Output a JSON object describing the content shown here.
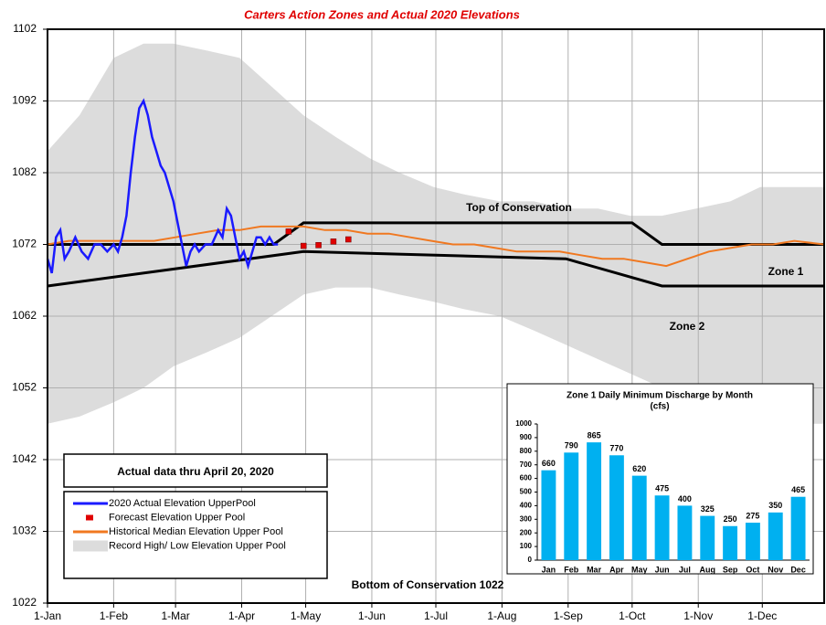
{
  "chart_data": [
    {
      "type": "line",
      "title": "Carters Action Zones and Actual 2020 Elevations",
      "xlim": [
        0,
        364
      ],
      "xticks": [
        {
          "value": 0,
          "label": "1-Jan"
        },
        {
          "value": 31,
          "label": "1-Feb"
        },
        {
          "value": 60,
          "label": "1-Mar"
        },
        {
          "value": 91,
          "label": "1-Apr"
        },
        {
          "value": 121,
          "label": "1-May"
        },
        {
          "value": 152,
          "label": "1-Jun"
        },
        {
          "value": 182,
          "label": "1-Jul"
        },
        {
          "value": 213,
          "label": "1-Aug"
        },
        {
          "value": 244,
          "label": "1-Sep"
        },
        {
          "value": 274,
          "label": "1-Oct"
        },
        {
          "value": 305,
          "label": "1-Nov"
        },
        {
          "value": 335,
          "label": "1-Dec"
        }
      ],
      "ylim": [
        1022,
        1102
      ],
      "yticks": [
        1022,
        1032,
        1042,
        1052,
        1062,
        1072,
        1082,
        1092,
        1102
      ],
      "grid": true,
      "series": [
        {
          "name": "Record High/ Low Elevation Upper Pool",
          "style": "band",
          "color": "#dcdcdc",
          "x": [
            0,
            15,
            31,
            45,
            59,
            75,
            90,
            105,
            120,
            135,
            151,
            165,
            181,
            195,
            212,
            228,
            243,
            258,
            273,
            288,
            304,
            320,
            334,
            350,
            364
          ],
          "high": [
            1085,
            1090,
            1098,
            1100,
            1100,
            1099,
            1098,
            1094,
            1090,
            1087,
            1084,
            1082,
            1080,
            1079,
            1078,
            1078,
            1077,
            1077,
            1076,
            1076,
            1077,
            1078,
            1080,
            1080,
            1080
          ],
          "low": [
            1047,
            1048,
            1050,
            1052,
            1055,
            1057,
            1059,
            1062,
            1065,
            1066,
            1066,
            1065,
            1064,
            1063,
            1062,
            1060,
            1058,
            1056,
            1054,
            1052,
            1050,
            1049,
            1048,
            1047,
            1047
          ]
        },
        {
          "name": "Historical Median Elevation Upper Pool",
          "style": "line",
          "color": "#f07820",
          "x": [
            0,
            10,
            20,
            30,
            40,
            50,
            60,
            70,
            80,
            90,
            100,
            110,
            120,
            130,
            140,
            150,
            160,
            170,
            180,
            190,
            200,
            210,
            220,
            230,
            240,
            250,
            260,
            270,
            280,
            290,
            300,
            310,
            320,
            330,
            340,
            350,
            364
          ],
          "values": [
            1072,
            1072.5,
            1072.5,
            1072.5,
            1072.5,
            1072.5,
            1073,
            1073.5,
            1074,
            1074,
            1074.5,
            1074.5,
            1074.5,
            1074,
            1074,
            1073.5,
            1073.5,
            1073,
            1072.5,
            1072,
            1072,
            1071.5,
            1071,
            1071,
            1071,
            1070.5,
            1070,
            1070,
            1069.5,
            1069,
            1070,
            1071,
            1071.5,
            1072,
            1072,
            1072.5,
            1072
          ]
        },
        {
          "name": "2020 Actual Elevation UpperPool",
          "style": "line",
          "color": "#1a1aff",
          "x": [
            0,
            2,
            4,
            6,
            8,
            10,
            13,
            16,
            19,
            22,
            25,
            28,
            31,
            33,
            35,
            37,
            39,
            41,
            43,
            45,
            47,
            49,
            51,
            53,
            55,
            57,
            59,
            61,
            63,
            65,
            67,
            69,
            71,
            74,
            77,
            80,
            82,
            84,
            86,
            88,
            90,
            92,
            94,
            96,
            98,
            100,
            102,
            104,
            106,
            108
          ],
          "values": [
            1070,
            1068,
            1073,
            1074,
            1070,
            1071,
            1073,
            1071,
            1070,
            1072,
            1072,
            1071,
            1072,
            1071,
            1073,
            1076,
            1082,
            1087,
            1091,
            1092,
            1090,
            1087,
            1085,
            1083,
            1082,
            1080,
            1078,
            1075,
            1072,
            1069,
            1071,
            1072,
            1071,
            1072,
            1072,
            1074,
            1073,
            1077,
            1076,
            1073,
            1070,
            1071,
            1069,
            1071,
            1073,
            1073,
            1072,
            1073,
            1072,
            1072
          ]
        },
        {
          "name": "Forecast Elevation Upper Pool",
          "style": "square",
          "color": "#e00000",
          "x": [
            113,
            120,
            127,
            134,
            141
          ],
          "values": [
            1073.8,
            1071.8,
            1071.9,
            1072.4,
            1072.7
          ]
        }
      ],
      "boundaries": [
        {
          "label": "Top of Conservation",
          "x": [
            0,
            106,
            120,
            274,
            288,
            364
          ],
          "values": [
            1072,
            1072,
            1075,
            1075,
            1072,
            1072
          ]
        },
        {
          "x": [
            0,
            120,
            243,
            288,
            364
          ],
          "values": [
            1066.2,
            1071,
            1070,
            1066.2,
            1066.2
          ]
        }
      ],
      "annotations": [
        "Zone 1",
        "Zone 2",
        "Bottom of Conservation 1022",
        "Actual data thru April 20, 2020"
      ]
    },
    {
      "type": "bar",
      "title": "Zone 1 Daily Minimum Discharge by Month",
      "subtitle": "(cfs)",
      "categories": [
        "Jan",
        "Feb",
        "Mar",
        "Apr",
        "May",
        "Jun",
        "Jul",
        "Aug",
        "Sep",
        "Oct",
        "Nov",
        "Dec"
      ],
      "values": [
        660,
        790,
        865,
        770,
        620,
        475,
        400,
        325,
        250,
        275,
        350,
        465
      ],
      "color": "#00b0f0",
      "ylim": [
        0,
        1000
      ],
      "yticks": [
        0,
        100,
        200,
        300,
        400,
        500,
        600,
        700,
        800,
        900,
        1000
      ]
    }
  ]
}
